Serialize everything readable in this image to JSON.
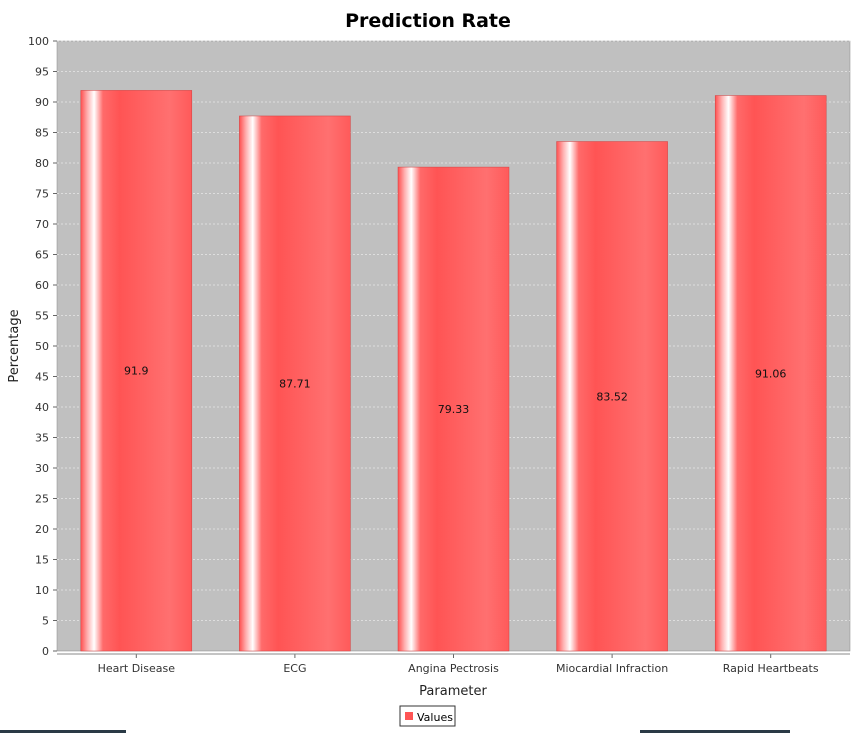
{
  "chart_data": {
    "type": "bar",
    "title": "Prediction Rate",
    "xlabel": "Parameter",
    "ylabel": "Percentage",
    "categories": [
      "Heart Disease",
      "ECG",
      "Angina Pectrosis",
      "Miocardial Infraction",
      "Rapid Heartbeats"
    ],
    "series": [
      {
        "name": "Values",
        "values": [
          91.9,
          87.71,
          79.33,
          83.52,
          91.06
        ],
        "color": "#ff5555"
      }
    ],
    "data_labels": [
      "91.9",
      "87.71",
      "79.33",
      "83.52",
      "91.06"
    ],
    "ylim": [
      0,
      100
    ],
    "ytick_step": 5,
    "grid": true,
    "legend_position": "bottom-center",
    "plot_background": "#c0c0c0",
    "grid_color": "#e8e8e8"
  }
}
